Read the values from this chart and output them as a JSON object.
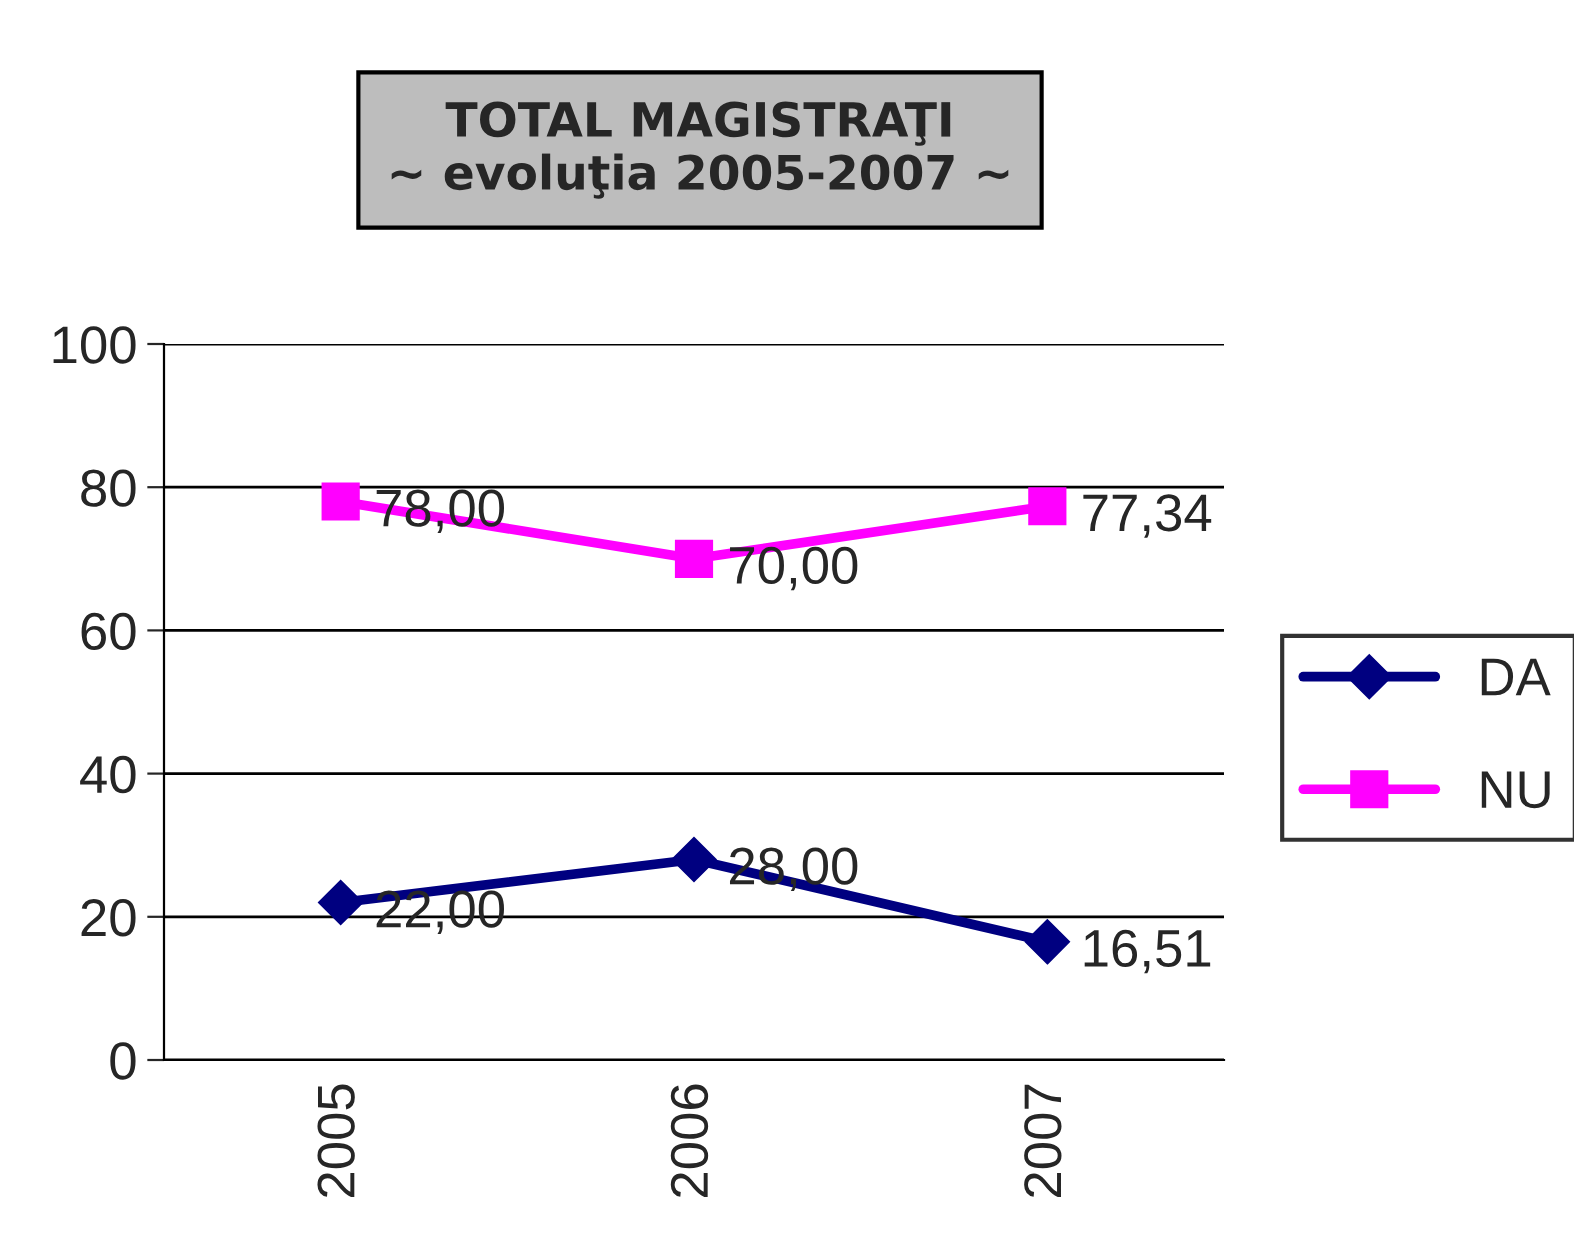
{
  "chart_data": {
    "type": "line",
    "title": "TOTAL MAGISTRAŢI\n~ evoluţia 2005-2007 ~",
    "categories": [
      "2005",
      "2006",
      "2007"
    ],
    "series": [
      {
        "name": "DA",
        "color": "#000080",
        "values": [
          22.0,
          28.0,
          16.51
        ],
        "value_labels": [
          "22,00",
          "28,00",
          "16,51"
        ],
        "marker": "diamond"
      },
      {
        "name": "NU",
        "color": "#ff00ff",
        "values": [
          78.0,
          70.0,
          77.34
        ],
        "value_labels": [
          "78,00",
          "70,00",
          "77,34"
        ],
        "marker": "square"
      }
    ],
    "ylim": [
      0,
      100
    ],
    "yticks": [
      0,
      20,
      40,
      60,
      80,
      100
    ],
    "grid": "y",
    "legend": "right",
    "line_style": "solid"
  }
}
